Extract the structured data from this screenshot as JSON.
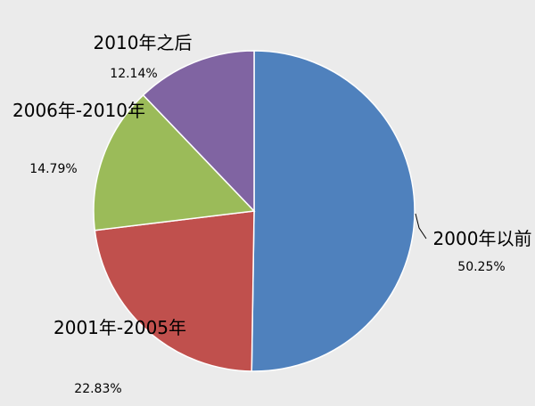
{
  "chart_data": {
    "type": "pie",
    "categories": [
      "2000年以前",
      "2001年-2005年",
      "2006年-2010年",
      "2010年之后"
    ],
    "values": [
      50.25,
      22.83,
      14.79,
      12.14
    ],
    "value_labels": [
      "50.25%",
      "22.83%",
      "14.79%",
      "12.14%"
    ],
    "colors": [
      "#4f81bd",
      "#c0504d",
      "#9bbb59",
      "#8064a2"
    ]
  }
}
